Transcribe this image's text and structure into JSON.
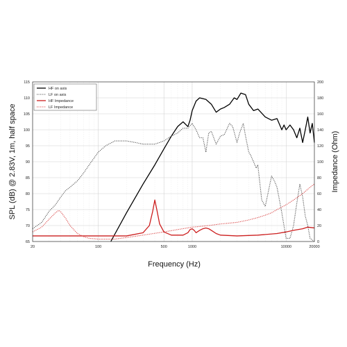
{
  "chart_data": {
    "type": "line",
    "xlabel": "Frequency (Hz)",
    "ylabel": "SPL (dB) @ 2.83V, 1m, half space",
    "y2label": "Impedance (Ohm)",
    "x_scale": "log",
    "xlim": [
      20,
      20000
    ],
    "ylim": [
      65,
      115
    ],
    "y2lim": [
      0,
      200
    ],
    "grid": true,
    "legend_position": "top-left",
    "x_ticks": [
      {
        "value": 20,
        "label": "20"
      },
      {
        "value": 100,
        "label": "100"
      },
      {
        "value": 500,
        "label": "500"
      },
      {
        "value": 1000,
        "label": "1000"
      },
      {
        "value": 10000,
        "label": "10000"
      },
      {
        "value": 20000,
        "label": "20000"
      }
    ],
    "y_ticks": [
      {
        "value": 65,
        "label": "65"
      },
      {
        "value": 70,
        "label": "70"
      },
      {
        "value": 75,
        "label": "75"
      },
      {
        "value": 80,
        "label": "80"
      },
      {
        "value": 85,
        "label": "85"
      },
      {
        "value": 90,
        "label": "90"
      },
      {
        "value": 95,
        "label": "95"
      },
      {
        "value": 100,
        "label": "100"
      },
      {
        "value": 105,
        "label": "105"
      },
      {
        "value": 110,
        "label": "110"
      },
      {
        "value": 115,
        "label": "115"
      }
    ],
    "y2_ticks": [
      {
        "value": 0,
        "label": "0"
      },
      {
        "value": 20,
        "label": "20"
      },
      {
        "value": 40,
        "label": "40"
      },
      {
        "value": 60,
        "label": "60"
      },
      {
        "value": 80,
        "label": "80"
      },
      {
        "value": 100,
        "label": "100"
      },
      {
        "value": 120,
        "label": "120"
      },
      {
        "value": 140,
        "label": "140"
      },
      {
        "value": 160,
        "label": "160"
      },
      {
        "value": 180,
        "label": "180"
      },
      {
        "value": 200,
        "label": "200"
      }
    ],
    "series": [
      {
        "name": "HF on axis",
        "axis": "left",
        "color": "#000000",
        "style": "solid",
        "x": [
          136,
          200,
          300,
          400,
          500,
          600,
          700,
          800,
          900,
          950,
          1000,
          1100,
          1200,
          1400,
          1600,
          1800,
          2000,
          2200,
          2500,
          2800,
          3000,
          3300,
          3700,
          4000,
          4500,
          5000,
          6000,
          7000,
          8000,
          9000,
          9500,
          10000,
          11000,
          12000,
          13000,
          14000,
          15000,
          16000,
          17000,
          18000,
          19000,
          20000
        ],
        "y": [
          65,
          74,
          83,
          89,
          94,
          98,
          101,
          102.5,
          101,
          103,
          106,
          109,
          110,
          109.5,
          108,
          105.5,
          106.5,
          107,
          108,
          110,
          109.5,
          111.5,
          111,
          108,
          106,
          106.5,
          104,
          103,
          103.5,
          100,
          101.5,
          100,
          101.5,
          100,
          97.5,
          100.5,
          96,
          100,
          104,
          99,
          102,
          96
        ]
      },
      {
        "name": "LF on axis",
        "axis": "left",
        "color": "#555555",
        "style": "dotted",
        "x": [
          20,
          25,
          30,
          35,
          40,
          45,
          50,
          60,
          70,
          80,
          100,
          120,
          150,
          200,
          250,
          300,
          400,
          500,
          600,
          700,
          800,
          900,
          1000,
          1100,
          1200,
          1300,
          1400,
          1500,
          1600,
          1800,
          2000,
          2200,
          2500,
          2700,
          3000,
          3200,
          3500,
          3700,
          4000,
          4200,
          4500,
          4800,
          5000,
          5500,
          6000,
          7000,
          7500,
          8000,
          9000,
          10000,
          11000,
          12000,
          13000,
          14000,
          15000,
          16000,
          17000,
          18000,
          20000
        ],
        "y": [
          69,
          71,
          74.5,
          76.5,
          79,
          81,
          82,
          84,
          86.5,
          89,
          93,
          95,
          96.5,
          96.5,
          96,
          95.5,
          95.5,
          96.5,
          98,
          99,
          100.5,
          100.5,
          102,
          100,
          97.5,
          97.5,
          93,
          99,
          99.5,
          95.5,
          98,
          98.5,
          102,
          101,
          96,
          99,
          102,
          98,
          93,
          92,
          90,
          88,
          89,
          78,
          76,
          85.5,
          84,
          82,
          74,
          66,
          66,
          70,
          77,
          83,
          79,
          73,
          70,
          66,
          65
        ]
      },
      {
        "name": "HF Impedance",
        "axis": "right",
        "color": "#cc1d1d",
        "style": "solid",
        "x": [
          20,
          100,
          200,
          300,
          350,
          380,
          400,
          420,
          450,
          500,
          600,
          800,
          900,
          950,
          1000,
          1050,
          1100,
          1200,
          1300,
          1400,
          1500,
          1600,
          1800,
          2000,
          3000,
          5000,
          8000,
          10000,
          12000,
          15000,
          17000,
          20000
        ],
        "y": [
          7,
          7,
          7,
          11,
          20,
          38,
          52,
          40,
          22,
          12,
          8,
          8,
          11,
          15,
          16,
          14,
          11,
          14,
          16,
          17,
          16,
          14,
          10,
          8,
          7,
          8,
          10,
          12,
          14,
          16,
          18,
          17
        ]
      },
      {
        "name": "LF Impedance",
        "axis": "right",
        "color": "#d94444",
        "style": "dotted",
        "x": [
          20,
          25,
          30,
          35,
          38,
          40,
          45,
          50,
          60,
          70,
          80,
          100,
          150,
          200,
          300,
          500,
          700,
          1000,
          1500,
          2000,
          3000,
          4000,
          5000,
          6000,
          7000,
          8000,
          10000,
          12000,
          15000,
          18000,
          20000
        ],
        "y": [
          12,
          18,
          28,
          36,
          39,
          37,
          29,
          20,
          10,
          6,
          4,
          3,
          3,
          5,
          8,
          12,
          15,
          18,
          20,
          22,
          24,
          27,
          30,
          33,
          36,
          40,
          46,
          52,
          60,
          68,
          72
        ]
      }
    ]
  }
}
